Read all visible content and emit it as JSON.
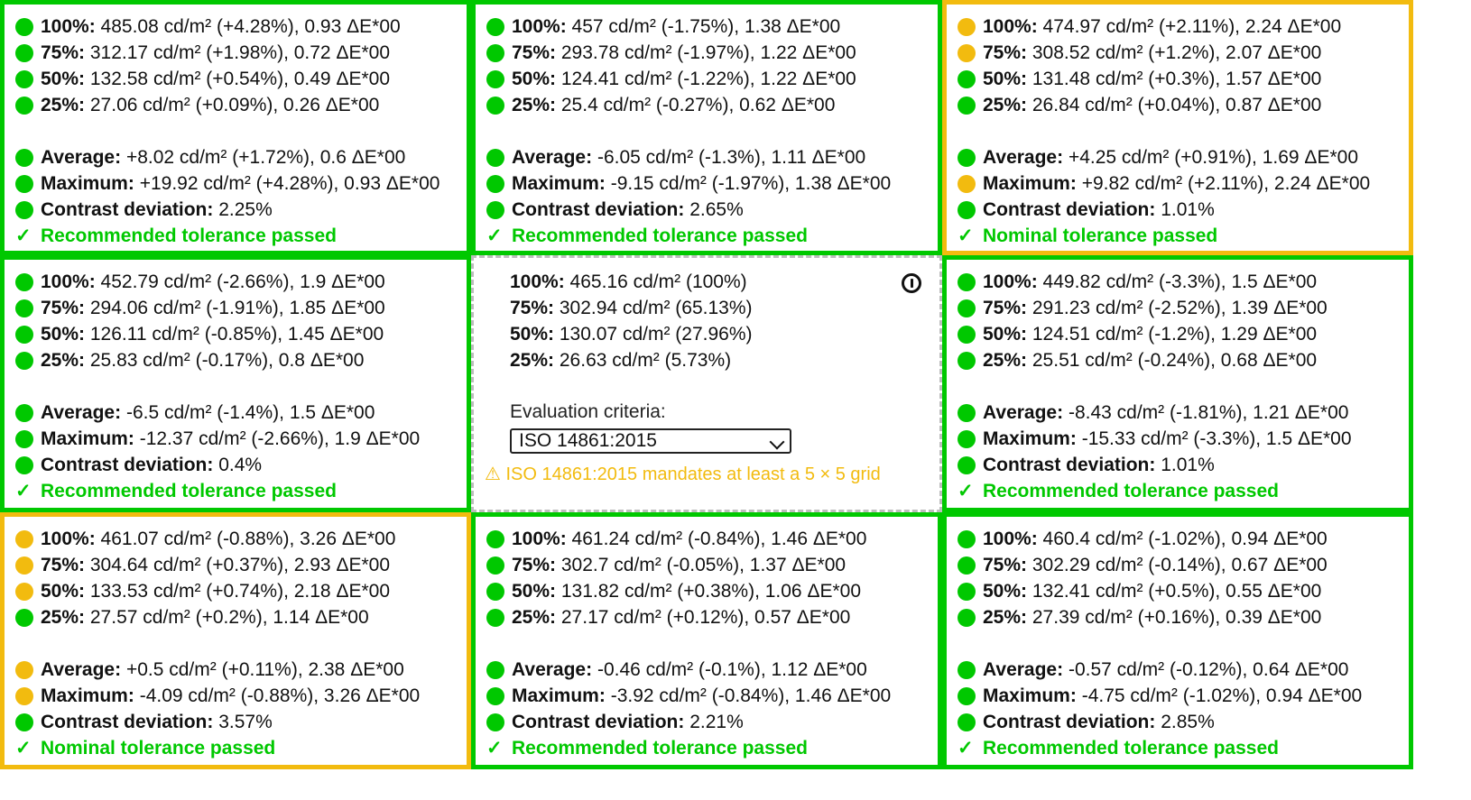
{
  "colors": {
    "green": "#00c800",
    "yellow": "#f2bb0f",
    "reference_border": "#bdbdbd"
  },
  "reference": {
    "rows": [
      {
        "label": "100%:",
        "value": "465.16 cd/m² (100%)"
      },
      {
        "label": "75%:",
        "value": "302.94 cd/m² (65.13%)"
      },
      {
        "label": "50%:",
        "value": "130.07 cd/m² (27.96%)"
      },
      {
        "label": "25%:",
        "value": "26.63 cd/m² (5.73%)"
      }
    ],
    "criteria_label": "Evaluation criteria:",
    "selected_criteria": "ISO 14861:2015",
    "warning": "⚠ ISO 14861:2015 mandates at least a 5 × 5 grid"
  },
  "cells": [
    {
      "status_color": "green",
      "rows": [
        {
          "dot": "green",
          "label": "100%:",
          "value": "485.08 cd/m² (+4.28%), 0.93 ΔE*00"
        },
        {
          "dot": "green",
          "label": "75%:",
          "value": "312.17 cd/m² (+1.98%), 0.72 ΔE*00"
        },
        {
          "dot": "green",
          "label": "50%:",
          "value": "132.58 cd/m² (+0.54%), 0.49 ΔE*00"
        },
        {
          "dot": "green",
          "label": "25%:",
          "value": "27.06 cd/m² (+0.09%), 0.26 ΔE*00"
        }
      ],
      "summary": [
        {
          "dot": "green",
          "label": "Average:",
          "value": "+8.02 cd/m² (+1.72%), 0.6 ΔE*00"
        },
        {
          "dot": "green",
          "label": "Maximum:",
          "value": "+19.92 cd/m² (+4.28%), 0.93 ΔE*00"
        },
        {
          "dot": "green",
          "label": "Contrast deviation:",
          "value": "2.25%"
        }
      ],
      "status": "Recommended tolerance passed"
    },
    {
      "status_color": "green",
      "rows": [
        {
          "dot": "green",
          "label": "100%:",
          "value": "457 cd/m² (-1.75%), 1.38 ΔE*00"
        },
        {
          "dot": "green",
          "label": "75%:",
          "value": "293.78 cd/m² (-1.97%), 1.22 ΔE*00"
        },
        {
          "dot": "green",
          "label": "50%:",
          "value": "124.41 cd/m² (-1.22%), 1.22 ΔE*00"
        },
        {
          "dot": "green",
          "label": "25%:",
          "value": "25.4 cd/m² (-0.27%), 0.62 ΔE*00"
        }
      ],
      "summary": [
        {
          "dot": "green",
          "label": "Average:",
          "value": "-6.05 cd/m² (-1.3%), 1.11 ΔE*00"
        },
        {
          "dot": "green",
          "label": "Maximum:",
          "value": "-9.15 cd/m² (-1.97%), 1.38 ΔE*00"
        },
        {
          "dot": "green",
          "label": "Contrast deviation:",
          "value": "2.65%"
        }
      ],
      "status": "Recommended tolerance passed"
    },
    {
      "status_color": "yellow",
      "rows": [
        {
          "dot": "yellow",
          "label": "100%:",
          "value": "474.97 cd/m² (+2.11%), 2.24 ΔE*00"
        },
        {
          "dot": "yellow",
          "label": "75%:",
          "value": "308.52 cd/m² (+1.2%), 2.07 ΔE*00"
        },
        {
          "dot": "green",
          "label": "50%:",
          "value": "131.48 cd/m² (+0.3%), 1.57 ΔE*00"
        },
        {
          "dot": "green",
          "label": "25%:",
          "value": "26.84 cd/m² (+0.04%), 0.87 ΔE*00"
        }
      ],
      "summary": [
        {
          "dot": "green",
          "label": "Average:",
          "value": "+4.25 cd/m² (+0.91%), 1.69 ΔE*00"
        },
        {
          "dot": "yellow",
          "label": "Maximum:",
          "value": "+9.82 cd/m² (+2.11%), 2.24 ΔE*00"
        },
        {
          "dot": "green",
          "label": "Contrast deviation:",
          "value": "1.01%"
        }
      ],
      "status": "Nominal tolerance passed"
    },
    {
      "status_color": "green",
      "rows": [
        {
          "dot": "green",
          "label": "100%:",
          "value": "452.79 cd/m² (-2.66%), 1.9 ΔE*00"
        },
        {
          "dot": "green",
          "label": "75%:",
          "value": "294.06 cd/m² (-1.91%), 1.85 ΔE*00"
        },
        {
          "dot": "green",
          "label": "50%:",
          "value": "126.11 cd/m² (-0.85%), 1.45 ΔE*00"
        },
        {
          "dot": "green",
          "label": "25%:",
          "value": "25.83 cd/m² (-0.17%), 0.8 ΔE*00"
        }
      ],
      "summary": [
        {
          "dot": "green",
          "label": "Average:",
          "value": "-6.5 cd/m² (-1.4%), 1.5 ΔE*00"
        },
        {
          "dot": "green",
          "label": "Maximum:",
          "value": "-12.37 cd/m² (-2.66%), 1.9 ΔE*00"
        },
        {
          "dot": "green",
          "label": "Contrast deviation:",
          "value": "0.4%"
        }
      ],
      "status": "Recommended tolerance passed"
    },
    {
      "status_color": "green",
      "rows": [
        {
          "dot": "green",
          "label": "100%:",
          "value": "449.82 cd/m² (-3.3%), 1.5 ΔE*00"
        },
        {
          "dot": "green",
          "label": "75%:",
          "value": "291.23 cd/m² (-2.52%), 1.39 ΔE*00"
        },
        {
          "dot": "green",
          "label": "50%:",
          "value": "124.51 cd/m² (-1.2%), 1.29 ΔE*00"
        },
        {
          "dot": "green",
          "label": "25%:",
          "value": "25.51 cd/m² (-0.24%), 0.68 ΔE*00"
        }
      ],
      "summary": [
        {
          "dot": "green",
          "label": "Average:",
          "value": "-8.43 cd/m² (-1.81%), 1.21 ΔE*00"
        },
        {
          "dot": "green",
          "label": "Maximum:",
          "value": "-15.33 cd/m² (-3.3%), 1.5 ΔE*00"
        },
        {
          "dot": "green",
          "label": "Contrast deviation:",
          "value": "1.01%"
        }
      ],
      "status": "Recommended tolerance passed"
    },
    {
      "status_color": "yellow",
      "rows": [
        {
          "dot": "yellow",
          "label": "100%:",
          "value": "461.07 cd/m² (-0.88%), 3.26 ΔE*00"
        },
        {
          "dot": "yellow",
          "label": "75%:",
          "value": "304.64 cd/m² (+0.37%), 2.93 ΔE*00"
        },
        {
          "dot": "yellow",
          "label": "50%:",
          "value": "133.53 cd/m² (+0.74%), 2.18 ΔE*00"
        },
        {
          "dot": "green",
          "label": "25%:",
          "value": "27.57 cd/m² (+0.2%), 1.14 ΔE*00"
        }
      ],
      "summary": [
        {
          "dot": "yellow",
          "label": "Average:",
          "value": "+0.5 cd/m² (+0.11%), 2.38 ΔE*00"
        },
        {
          "dot": "yellow",
          "label": "Maximum:",
          "value": "-4.09 cd/m² (-0.88%), 3.26 ΔE*00"
        },
        {
          "dot": "green",
          "label": "Contrast deviation:",
          "value": "3.57%"
        }
      ],
      "status": "Nominal tolerance passed"
    },
    {
      "status_color": "green",
      "rows": [
        {
          "dot": "green",
          "label": "100%:",
          "value": "461.24 cd/m² (-0.84%), 1.46 ΔE*00"
        },
        {
          "dot": "green",
          "label": "75%:",
          "value": "302.7 cd/m² (-0.05%), 1.37 ΔE*00"
        },
        {
          "dot": "green",
          "label": "50%:",
          "value": "131.82 cd/m² (+0.38%), 1.06 ΔE*00"
        },
        {
          "dot": "green",
          "label": "25%:",
          "value": "27.17 cd/m² (+0.12%), 0.57 ΔE*00"
        }
      ],
      "summary": [
        {
          "dot": "green",
          "label": "Average:",
          "value": "-0.46 cd/m² (-0.1%), 1.12 ΔE*00"
        },
        {
          "dot": "green",
          "label": "Maximum:",
          "value": "-3.92 cd/m² (-0.84%), 1.46 ΔE*00"
        },
        {
          "dot": "green",
          "label": "Contrast deviation:",
          "value": "2.21%"
        }
      ],
      "status": "Recommended tolerance passed"
    },
    {
      "status_color": "green",
      "rows": [
        {
          "dot": "green",
          "label": "100%:",
          "value": "460.4 cd/m² (-1.02%), 0.94 ΔE*00"
        },
        {
          "dot": "green",
          "label": "75%:",
          "value": "302.29 cd/m² (-0.14%), 0.67 ΔE*00"
        },
        {
          "dot": "green",
          "label": "50%:",
          "value": "132.41 cd/m² (+0.5%), 0.55 ΔE*00"
        },
        {
          "dot": "green",
          "label": "25%:",
          "value": "27.39 cd/m² (+0.16%), 0.39 ΔE*00"
        }
      ],
      "summary": [
        {
          "dot": "green",
          "label": "Average:",
          "value": "-0.57 cd/m² (-0.12%), 0.64 ΔE*00"
        },
        {
          "dot": "green",
          "label": "Maximum:",
          "value": "-4.75 cd/m² (-1.02%), 0.94 ΔE*00"
        },
        {
          "dot": "green",
          "label": "Contrast deviation:",
          "value": "2.85%"
        }
      ],
      "status": "Recommended tolerance passed"
    }
  ]
}
